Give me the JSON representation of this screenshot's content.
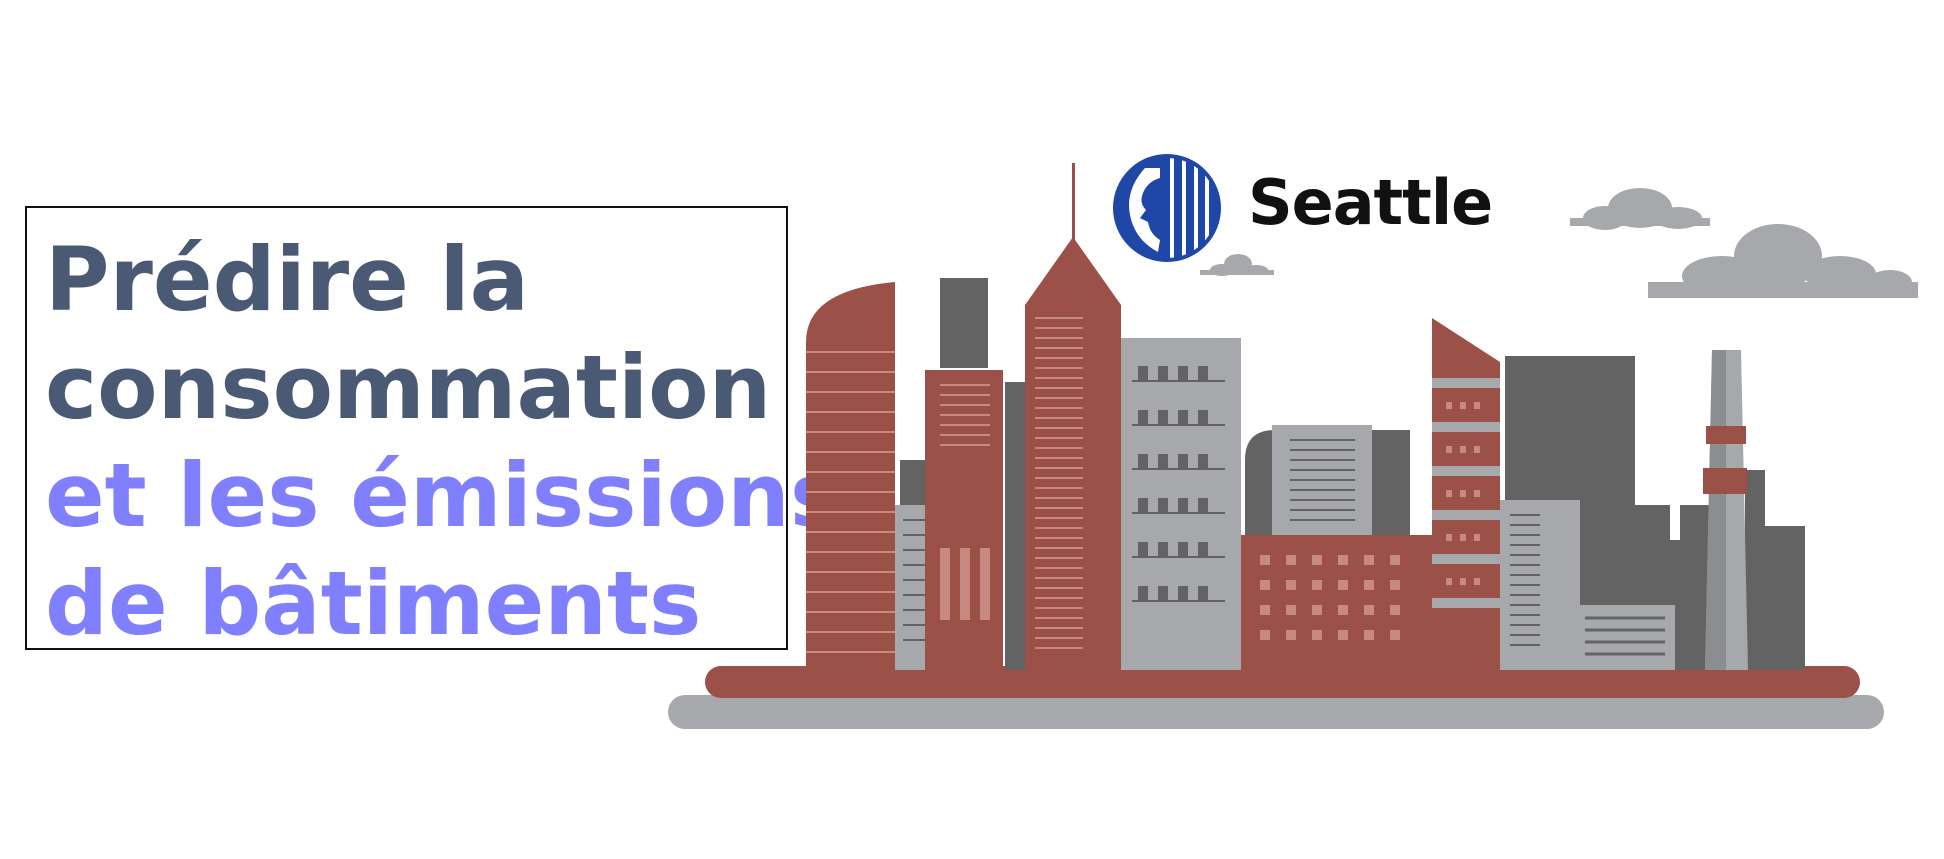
{
  "headline": {
    "line1": "Prédire la",
    "line2": "consommation",
    "line3": "et les émissions",
    "line4": "de bâtiments"
  },
  "logo": {
    "name": "Seattle",
    "icon": "seattle-seal-icon"
  },
  "colors": {
    "headline_dark": "#4a5a75",
    "headline_accent": "#8080ff",
    "building_red": "#9b5048",
    "building_dark_gray": "#636363",
    "building_light_gray": "#a7a8ab",
    "logo_blue": "#1f47a8"
  },
  "illustration": {
    "subject": "city-skyline-icon",
    "elements": [
      "cloud-icon",
      "cloud-icon",
      "cloud-icon",
      "smokestack-icon"
    ]
  }
}
